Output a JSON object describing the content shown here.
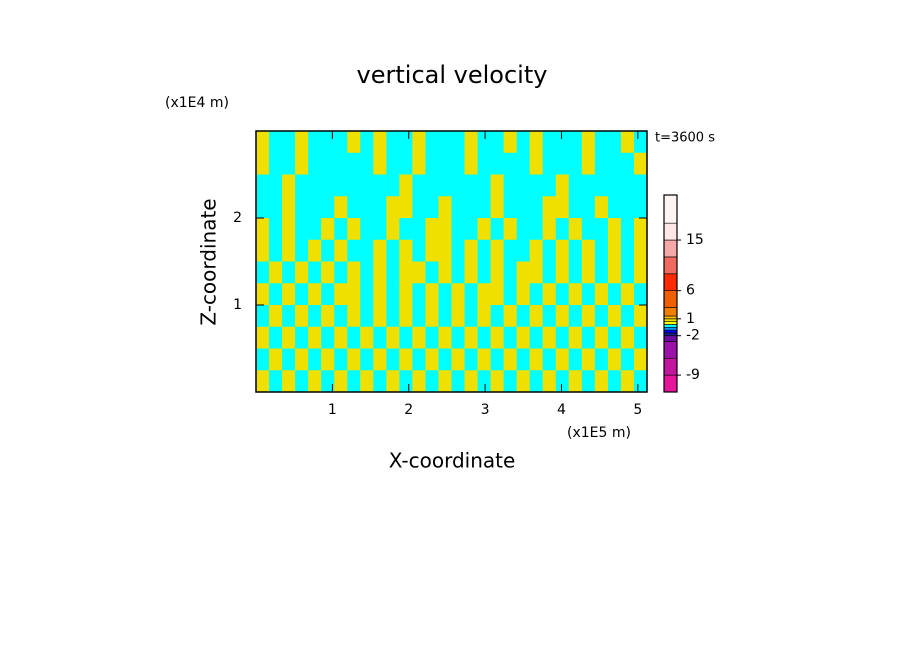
{
  "chart_data": {
    "type": "contour",
    "title": "vertical velocity",
    "x_label": "X-coordinate",
    "y_label": "Z-coordinate",
    "x_unit": "(x1E5 m)",
    "y_unit": "(x1E4 m)",
    "annotation": "t=3600 s",
    "xlim": [
      0,
      5.12
    ],
    "xticks": [
      1,
      2,
      3,
      4,
      5
    ],
    "ylim": [
      0,
      3
    ],
    "yticks": [
      1,
      2
    ],
    "colorbar": {
      "clim": [
        -12,
        23
      ],
      "levels": [
        -12,
        -9,
        -6,
        -3,
        -2,
        -1.5,
        -1,
        -0.5,
        0,
        0.5,
        1,
        1.5,
        3,
        6,
        9,
        12,
        15,
        18,
        23
      ],
      "colors": [
        "#e6139b",
        "#c1169e",
        "#9b12a8",
        "#6a0ca0",
        "#1c1c8c",
        "#0000ff",
        "#0099ff",
        "#00ffff",
        "#ffff00",
        "#f0e000",
        "#ffc000",
        "#f08000",
        "#f06000",
        "#ff2a00",
        "#f06a60",
        "#f4a8a8",
        "#fde6e6",
        "#fff4f4"
      ],
      "ticks": [
        15,
        6,
        1,
        -2,
        -9
      ]
    },
    "z": [
      [
        0.5,
        -0.5,
        -0.5,
        0.5,
        -0.5,
        -0.5,
        -0.5,
        0.5,
        -0.5,
        0.5,
        -0.5,
        -0.5,
        0.5,
        -0.5,
        -0.5,
        -0.5,
        0.5,
        -0.5,
        -0.5,
        0.5,
        -0.5,
        0.5,
        -0.5,
        -0.5,
        -0.5,
        0.5,
        -0.5,
        -0.5,
        0.5,
        -0.5
      ],
      [
        0.5,
        -0.5,
        -0.5,
        0.5,
        -0.5,
        -0.5,
        -0.5,
        -0.5,
        -0.5,
        0.5,
        -0.5,
        -0.5,
        0.5,
        -0.5,
        -0.5,
        -0.5,
        0.5,
        -0.5,
        -0.5,
        -0.5,
        -0.5,
        0.5,
        -0.5,
        -0.5,
        -0.5,
        0.5,
        -0.5,
        -0.5,
        -0.5,
        0.5
      ],
      [
        -0.5,
        -0.5,
        0.5,
        -0.5,
        -0.5,
        -0.5,
        -0.5,
        -0.5,
        -0.5,
        -0.5,
        -0.5,
        0.5,
        -0.5,
        -0.5,
        -0.5,
        -0.5,
        -0.5,
        -0.5,
        0.5,
        -0.5,
        -0.5,
        -0.5,
        -0.5,
        0.5,
        -0.5,
        -0.5,
        -0.5,
        -0.5,
        -0.5,
        -0.5
      ],
      [
        -0.5,
        -0.5,
        0.5,
        -0.5,
        -0.5,
        -0.5,
        0.5,
        -0.5,
        -0.5,
        -0.5,
        0.5,
        0.5,
        -0.5,
        -0.5,
        0.5,
        -0.5,
        -0.5,
        -0.5,
        0.5,
        -0.5,
        -0.5,
        -0.5,
        0.5,
        0.5,
        -0.5,
        -0.5,
        0.5,
        -0.5,
        -0.5,
        -0.5
      ],
      [
        0.5,
        -0.5,
        0.5,
        -0.5,
        -0.5,
        0.5,
        -0.5,
        0.5,
        -0.5,
        -0.5,
        0.5,
        -0.5,
        -0.5,
        0.5,
        0.5,
        -0.5,
        -0.5,
        0.5,
        -0.5,
        0.5,
        -0.5,
        -0.5,
        0.5,
        -0.5,
        0.5,
        -0.5,
        -0.5,
        0.5,
        -0.5,
        0.5
      ],
      [
        0.5,
        -0.5,
        0.5,
        -0.5,
        0.5,
        -0.5,
        0.5,
        -0.5,
        -0.5,
        0.5,
        -0.5,
        0.5,
        -0.5,
        0.5,
        0.5,
        -0.5,
        0.5,
        -0.5,
        0.5,
        -0.5,
        -0.5,
        0.5,
        -0.5,
        0.5,
        -0.5,
        0.5,
        -0.5,
        0.5,
        -0.5,
        0.5
      ],
      [
        -0.5,
        0.5,
        -0.5,
        0.5,
        -0.5,
        0.5,
        -0.5,
        0.5,
        -0.5,
        0.5,
        -0.5,
        0.5,
        0.5,
        -0.5,
        0.5,
        -0.5,
        0.5,
        -0.5,
        0.5,
        -0.5,
        0.5,
        0.5,
        -0.5,
        0.5,
        -0.5,
        0.5,
        -0.5,
        0.5,
        -0.5,
        0.5
      ],
      [
        0.5,
        -0.5,
        0.5,
        -0.5,
        0.5,
        -0.5,
        0.5,
        0.5,
        -0.5,
        0.5,
        -0.5,
        0.5,
        -0.5,
        0.5,
        -0.5,
        0.5,
        -0.5,
        0.5,
        0.5,
        -0.5,
        0.5,
        -0.5,
        0.5,
        -0.5,
        0.5,
        -0.5,
        0.5,
        -0.5,
        0.5,
        -0.5
      ],
      [
        -0.5,
        0.5,
        -0.5,
        0.5,
        -0.5,
        0.5,
        -0.5,
        0.5,
        -0.5,
        0.5,
        -0.5,
        0.5,
        -0.5,
        0.5,
        -0.5,
        0.5,
        -0.5,
        0.5,
        -0.5,
        0.5,
        -0.5,
        0.5,
        -0.5,
        0.5,
        -0.5,
        0.5,
        -0.5,
        0.5,
        -0.5,
        0.5
      ],
      [
        0.5,
        -0.5,
        0.5,
        -0.5,
        0.5,
        -0.5,
        0.5,
        -0.5,
        0.5,
        -0.5,
        0.5,
        -0.5,
        0.5,
        -0.5,
        0.5,
        -0.5,
        0.5,
        -0.5,
        0.5,
        -0.5,
        0.5,
        -0.5,
        0.5,
        -0.5,
        0.5,
        -0.5,
        0.5,
        -0.5,
        0.5,
        -0.5
      ],
      [
        -0.5,
        0.5,
        -0.5,
        0.5,
        -0.5,
        0.5,
        -0.5,
        0.5,
        -0.5,
        0.5,
        -0.5,
        0.5,
        -0.5,
        0.5,
        -0.5,
        0.5,
        -0.5,
        0.5,
        -0.5,
        0.5,
        -0.5,
        0.5,
        -0.5,
        0.5,
        -0.5,
        0.5,
        -0.5,
        0.5,
        -0.5,
        0.5
      ],
      [
        0.5,
        -0.5,
        0.5,
        -0.5,
        0.5,
        -0.5,
        0.5,
        -0.5,
        0.5,
        -0.5,
        0.5,
        -0.5,
        0.5,
        -0.5,
        0.5,
        -0.5,
        0.5,
        -0.5,
        0.5,
        -0.5,
        0.5,
        -0.5,
        0.5,
        -0.5,
        0.5,
        -0.5,
        0.5,
        -0.5,
        0.5,
        -0.5
      ]
    ]
  }
}
